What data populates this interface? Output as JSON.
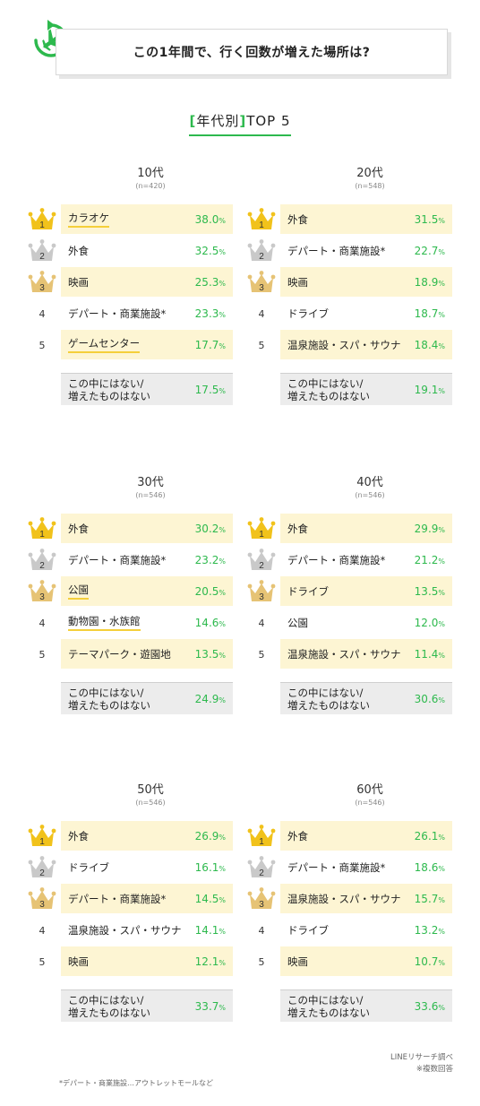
{
  "title": "この1年間で、行く回数が増えた場所は?",
  "subtitle": {
    "open": "[",
    "text": "年代別",
    "close": "]",
    "tail": "TOP 5"
  },
  "colors": {
    "accent_green": "#2db94d",
    "highlight": "#fdf5d3",
    "gold": "#f1c21b",
    "silver": "#c9c9c9",
    "bronze": "#e6c375"
  },
  "chart_data": [
    {
      "type": "table",
      "title": "10代",
      "n": "(n=420)",
      "rows": [
        {
          "rank": 1,
          "label": "カラオケ",
          "value": 38.0
        },
        {
          "rank": 2,
          "label": "外食",
          "value": 32.5
        },
        {
          "rank": 3,
          "label": "映画",
          "value": 25.3
        },
        {
          "rank": 4,
          "label": "デパート・商業施設*",
          "value": 23.3
        },
        {
          "rank": 5,
          "label": "ゲームセンター",
          "value": 17.7
        }
      ],
      "other": {
        "label": "この中にはない/ 増えたものはない",
        "value": 17.5
      }
    },
    {
      "type": "table",
      "title": "20代",
      "n": "(n=548)",
      "rows": [
        {
          "rank": 1,
          "label": "外食",
          "value": 31.5
        },
        {
          "rank": 2,
          "label": "デパート・商業施設*",
          "value": 22.7
        },
        {
          "rank": 3,
          "label": "映画",
          "value": 18.9
        },
        {
          "rank": 4,
          "label": "ドライブ",
          "value": 18.7
        },
        {
          "rank": 5,
          "label": "温泉施設・スパ・サウナ",
          "value": 18.4
        }
      ],
      "other": {
        "label": "この中にはない/ 増えたものはない",
        "value": 19.1
      }
    },
    {
      "type": "table",
      "title": "30代",
      "n": "(n=546)",
      "rows": [
        {
          "rank": 1,
          "label": "外食",
          "value": 30.2
        },
        {
          "rank": 2,
          "label": "デパート・商業施設*",
          "value": 23.2
        },
        {
          "rank": 3,
          "label": "公園",
          "value": 20.5
        },
        {
          "rank": 4,
          "label": "動物園・水族館",
          "value": 14.6
        },
        {
          "rank": 5,
          "label": "テーマパーク・遊園地",
          "value": 13.5
        }
      ],
      "other": {
        "label": "この中にはない/ 増えたものはない",
        "value": 24.9
      }
    },
    {
      "type": "table",
      "title": "40代",
      "n": "(n=546)",
      "rows": [
        {
          "rank": 1,
          "label": "外食",
          "value": 29.9
        },
        {
          "rank": 2,
          "label": "デパート・商業施設*",
          "value": 21.2
        },
        {
          "rank": 3,
          "label": "ドライブ",
          "value": 13.5
        },
        {
          "rank": 4,
          "label": "公園",
          "value": 12.0
        },
        {
          "rank": 5,
          "label": "温泉施設・スパ・サウナ",
          "value": 11.4
        }
      ],
      "other": {
        "label": "この中にはない/ 増えたものはない",
        "value": 30.6
      }
    },
    {
      "type": "table",
      "title": "50代",
      "n": "(n=546)",
      "rows": [
        {
          "rank": 1,
          "label": "外食",
          "value": 26.9
        },
        {
          "rank": 2,
          "label": "ドライブ",
          "value": 16.1
        },
        {
          "rank": 3,
          "label": "デパート・商業施設*",
          "value": 14.5
        },
        {
          "rank": 4,
          "label": "温泉施設・スパ・サウナ",
          "value": 14.1
        },
        {
          "rank": 5,
          "label": "映画",
          "value": 12.1
        }
      ],
      "other": {
        "label": "この中にはない/ 増えたものはない",
        "value": 33.7
      }
    },
    {
      "type": "table",
      "title": "60代",
      "n": "(n=546)",
      "rows": [
        {
          "rank": 1,
          "label": "外食",
          "value": 26.1
        },
        {
          "rank": 2,
          "label": "デパート・商業施設*",
          "value": 18.6
        },
        {
          "rank": 3,
          "label": "温泉施設・スパ・サウナ",
          "value": 15.7
        },
        {
          "rank": 4,
          "label": "ドライブ",
          "value": 13.2
        },
        {
          "rank": 5,
          "label": "映画",
          "value": 10.7
        }
      ],
      "other": {
        "label": "この中にはない/ 増えたものはない",
        "value": 33.6
      }
    }
  ],
  "percent_unit": "%",
  "source": "LINEリサーチ調べ",
  "multi_answer": "※複数回答",
  "footnote": "*デパート・商業施設…アウトレットモールなど",
  "underlined_labels": [
    [
      "カラオケ",
      "ゲームセンター"
    ],
    [],
    [
      "公園",
      "動物園・水族館"
    ],
    [],
    [],
    []
  ]
}
